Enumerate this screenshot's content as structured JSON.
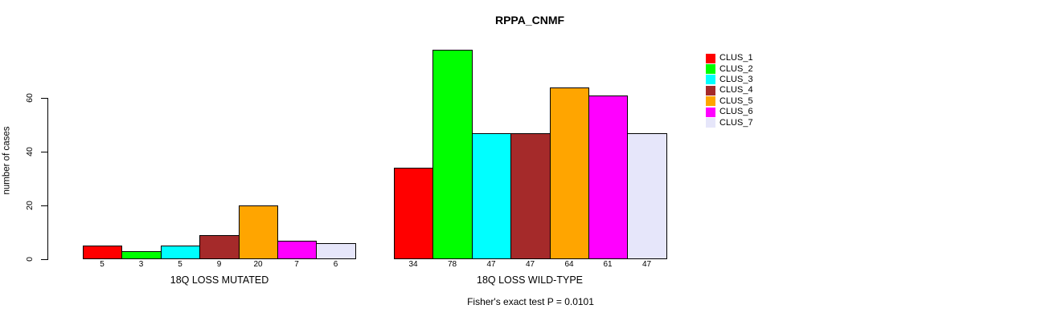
{
  "chart_data": {
    "type": "bar",
    "title": "RPPA_CNMF",
    "ylabel": "number of cases",
    "xlabel": "",
    "categories": [
      "18Q LOSS MUTATED",
      "18Q LOSS WILD-TYPE"
    ],
    "series": [
      {
        "name": "CLUS_1",
        "color": "#ff0000",
        "values": [
          5,
          34
        ]
      },
      {
        "name": "CLUS_2",
        "color": "#00ff00",
        "values": [
          3,
          78
        ]
      },
      {
        "name": "CLUS_3",
        "color": "#00ffff",
        "values": [
          5,
          47
        ]
      },
      {
        "name": "CLUS_4",
        "color": "#a52a2a",
        "values": [
          9,
          47
        ]
      },
      {
        "name": "CLUS_5",
        "color": "#ffa500",
        "values": [
          20,
          64
        ]
      },
      {
        "name": "CLUS_6",
        "color": "#ff00ff",
        "values": [
          7,
          61
        ]
      },
      {
        "name": "CLUS_7",
        "color": "#e6e6fa",
        "values": [
          6,
          47
        ]
      }
    ],
    "yticks": [
      0,
      20,
      40,
      60
    ],
    "ylim": [
      0,
      78
    ],
    "bar_value_labels": true,
    "grid": false,
    "legend_position": "right",
    "footer": "Fisher's exact test P = 0.0101",
    "colors": {
      "background": "#ffffff",
      "axis": "#000000",
      "bar_border": "#000000",
      "text": "#000000"
    }
  }
}
